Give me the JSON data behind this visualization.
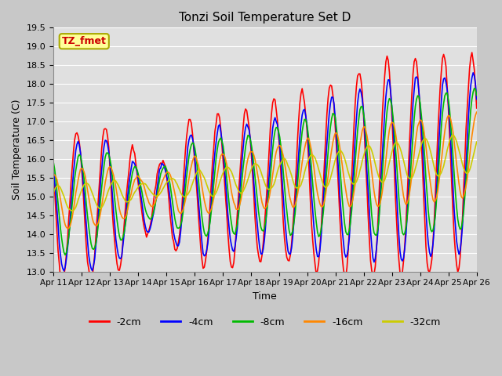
{
  "title": "Tonzi Soil Temperature Set D",
  "xlabel": "Time",
  "ylabel": "Soil Temperature (C)",
  "ylim": [
    13.0,
    19.5
  ],
  "yticks": [
    13.0,
    13.5,
    14.0,
    14.5,
    15.0,
    15.5,
    16.0,
    16.5,
    17.0,
    17.5,
    18.0,
    18.5,
    19.0,
    19.5
  ],
  "xtick_labels": [
    "Apr 11",
    "Apr 12",
    "Apr 13",
    "Apr 14",
    "Apr 15",
    "Apr 16",
    "Apr 17",
    "Apr 18",
    "Apr 19",
    "Apr 20",
    "Apr 21",
    "Apr 22",
    "Apr 23",
    "Apr 24",
    "Apr 25",
    "Apr 26"
  ],
  "fig_bg_color": "#c8c8c8",
  "ax_bg_color": "#e0e0e0",
  "legend_items": [
    "-2cm",
    "-4cm",
    "-8cm",
    "-16cm",
    "-32cm"
  ],
  "line_colors": [
    "#ff0000",
    "#0000ff",
    "#00bb00",
    "#ff8800",
    "#cccc00"
  ],
  "annotation_text": "TZ_fmet",
  "annotation_bg": "#ffff99",
  "annotation_border": "#aaaa00",
  "grid_color": "#ffffff",
  "linewidth": 1.2
}
